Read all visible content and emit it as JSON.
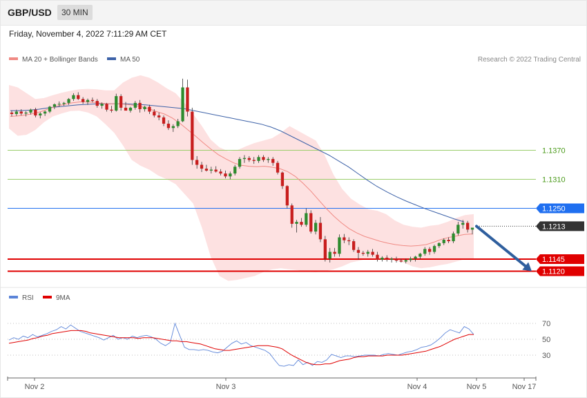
{
  "header": {
    "symbol": "GBP/USD",
    "timeframe": "30 MIN"
  },
  "date_line": "Friday, November 4, 2022 7:11:29 AM CET",
  "credit": "Research © 2022 Trading Central",
  "legend_main": [
    {
      "label": "MA 20 + Bollinger Bands",
      "color": "#f08a84"
    },
    {
      "label": "MA 50",
      "color": "#3d62a8"
    }
  ],
  "legend_rsi": [
    {
      "label": "RSI",
      "color": "#5b84d8"
    },
    {
      "label": "9MA",
      "color": "#e00000"
    }
  ],
  "colors": {
    "up": "#2e8b2e",
    "down": "#c81e1e",
    "bollinger_fill": "#fde1e1",
    "ma20": "#f08a84",
    "ma50": "#3d62a8",
    "resistance": "#9acd6a",
    "pivot": "#1f6ff0",
    "support": "#e00000",
    "current": "#333333",
    "arrow": "#2f5f9e"
  },
  "chart_data": [
    {
      "type": "candlestick",
      "title": "GBP/USD 30 MIN",
      "ylim": [
        1.1095,
        1.1545
      ],
      "x_ticks": [
        "Nov 2",
        "Nov 3",
        "Nov 4",
        "Nov 5",
        "Nov 17"
      ],
      "grid": false,
      "legend_position": "top-left",
      "candles": [
        [
          1.1448,
          1.1452,
          1.144,
          1.1445
        ],
        [
          1.1445,
          1.1454,
          1.1441,
          1.145
        ],
        [
          1.145,
          1.1455,
          1.1442,
          1.1446
        ],
        [
          1.1446,
          1.1451,
          1.144,
          1.1448
        ],
        [
          1.1448,
          1.1456,
          1.1444,
          1.1454
        ],
        [
          1.1454,
          1.1458,
          1.1438,
          1.1442
        ],
        [
          1.1442,
          1.1449,
          1.1436,
          1.1446
        ],
        [
          1.1446,
          1.1452,
          1.1441,
          1.145
        ],
        [
          1.145,
          1.1462,
          1.1447,
          1.146
        ],
        [
          1.146,
          1.1467,
          1.1455,
          1.1465
        ],
        [
          1.1465,
          1.1471,
          1.146,
          1.1466
        ],
        [
          1.1466,
          1.147,
          1.1462,
          1.1468
        ],
        [
          1.1468,
          1.1478,
          1.1464,
          1.1476
        ],
        [
          1.1476,
          1.1488,
          1.1472,
          1.1484
        ],
        [
          1.1484,
          1.149,
          1.1474,
          1.1476
        ],
        [
          1.1476,
          1.148,
          1.1466,
          1.147
        ],
        [
          1.147,
          1.1477,
          1.1464,
          1.1474
        ],
        [
          1.1474,
          1.1479,
          1.1469,
          1.1472
        ],
        [
          1.1472,
          1.1476,
          1.1458,
          1.1462
        ],
        [
          1.1462,
          1.1469,
          1.1456,
          1.1466
        ],
        [
          1.1466,
          1.1468,
          1.145,
          1.1454
        ],
        [
          1.1454,
          1.1462,
          1.1448,
          1.1452
        ],
        [
          1.1452,
          1.1487,
          1.145,
          1.1482
        ],
        [
          1.1482,
          1.1486,
          1.1452,
          1.1458
        ],
        [
          1.1458,
          1.147,
          1.1454,
          1.1452
        ],
        [
          1.1452,
          1.146,
          1.1448,
          1.1458
        ],
        [
          1.1458,
          1.1472,
          1.1454,
          1.1468
        ],
        [
          1.1468,
          1.1474,
          1.1448,
          1.1455
        ],
        [
          1.1455,
          1.1462,
          1.145,
          1.146
        ],
        [
          1.146,
          1.1464,
          1.1445,
          1.145
        ],
        [
          1.145,
          1.1455,
          1.1438,
          1.1442
        ],
        [
          1.1442,
          1.1448,
          1.1432,
          1.1438
        ],
        [
          1.1438,
          1.1442,
          1.142,
          1.1425
        ],
        [
          1.1425,
          1.1432,
          1.1412,
          1.1416
        ],
        [
          1.1416,
          1.1424,
          1.1408,
          1.142
        ],
        [
          1.142,
          1.1435,
          1.1416,
          1.143
        ],
        [
          1.143,
          1.1518,
          1.1428,
          1.15
        ],
        [
          1.15,
          1.1516,
          1.144,
          1.145
        ],
        [
          1.145,
          1.1458,
          1.134,
          1.135
        ],
        [
          1.135,
          1.1358,
          1.1332,
          1.134
        ],
        [
          1.134,
          1.1346,
          1.1325,
          1.1332
        ],
        [
          1.1332,
          1.134,
          1.1326,
          1.1328
        ],
        [
          1.1328,
          1.1336,
          1.1322,
          1.133
        ],
        [
          1.133,
          1.1337,
          1.1324,
          1.1326
        ],
        [
          1.1326,
          1.1331,
          1.1318,
          1.1322
        ],
        [
          1.1322,
          1.1328,
          1.1312,
          1.1316
        ],
        [
          1.1316,
          1.1326,
          1.131,
          1.1322
        ],
        [
          1.1322,
          1.134,
          1.1318,
          1.1336
        ],
        [
          1.1336,
          1.1356,
          1.1332,
          1.1352
        ],
        [
          1.1352,
          1.136,
          1.1344,
          1.1354
        ],
        [
          1.1354,
          1.1358,
          1.1346,
          1.135
        ],
        [
          1.135,
          1.1356,
          1.1342,
          1.1348
        ],
        [
          1.1348,
          1.136,
          1.1344,
          1.1356
        ],
        [
          1.1356,
          1.136,
          1.1346,
          1.135
        ],
        [
          1.135,
          1.1356,
          1.1344,
          1.1352
        ],
        [
          1.1352,
          1.1356,
          1.1338,
          1.1344
        ],
        [
          1.1344,
          1.1348,
          1.132,
          1.1324
        ],
        [
          1.1324,
          1.1326,
          1.129,
          1.1296
        ],
        [
          1.1296,
          1.1298,
          1.125,
          1.1256
        ],
        [
          1.1256,
          1.126,
          1.121,
          1.1218
        ],
        [
          1.1218,
          1.1226,
          1.12,
          1.1222
        ],
        [
          1.1222,
          1.123,
          1.1212,
          1.1216
        ],
        [
          1.1216,
          1.125,
          1.1212,
          1.124
        ],
        [
          1.124,
          1.1246,
          1.1198,
          1.1202
        ],
        [
          1.1202,
          1.1226,
          1.1196,
          1.122
        ],
        [
          1.122,
          1.1232,
          1.118,
          1.1186
        ],
        [
          1.1186,
          1.1193,
          1.114,
          1.1146
        ],
        [
          1.1146,
          1.1168,
          1.1138,
          1.116
        ],
        [
          1.116,
          1.1168,
          1.115,
          1.1156
        ],
        [
          1.1156,
          1.1196,
          1.115,
          1.119
        ],
        [
          1.119,
          1.1197,
          1.1178,
          1.1184
        ],
        [
          1.1184,
          1.119,
          1.1174,
          1.1182
        ],
        [
          1.1182,
          1.1186,
          1.116,
          1.1164
        ],
        [
          1.1164,
          1.117,
          1.1144,
          1.1158
        ],
        [
          1.1158,
          1.1162,
          1.1152,
          1.1156
        ],
        [
          1.1156,
          1.1164,
          1.115,
          1.116
        ],
        [
          1.116,
          1.1166,
          1.115,
          1.1154
        ],
        [
          1.1154,
          1.116,
          1.114,
          1.1144
        ],
        [
          1.1144,
          1.1151,
          1.114,
          1.1148
        ],
        [
          1.1148,
          1.1153,
          1.114,
          1.1144
        ],
        [
          1.1144,
          1.1149,
          1.1138,
          1.1146
        ],
        [
          1.1146,
          1.115,
          1.1138,
          1.1142
        ],
        [
          1.1142,
          1.1146,
          1.1138,
          1.114
        ],
        [
          1.114,
          1.1146,
          1.1136,
          1.1143
        ],
        [
          1.1143,
          1.115,
          1.1139,
          1.1146
        ],
        [
          1.1146,
          1.1152,
          1.114,
          1.115
        ],
        [
          1.115,
          1.1158,
          1.1145,
          1.1156
        ],
        [
          1.1156,
          1.117,
          1.1152,
          1.1166
        ],
        [
          1.1166,
          1.117,
          1.1154,
          1.116
        ],
        [
          1.116,
          1.1175,
          1.1156,
          1.1172
        ],
        [
          1.1172,
          1.118,
          1.1168,
          1.1178
        ],
        [
          1.1178,
          1.1188,
          1.1174,
          1.1185
        ],
        [
          1.1185,
          1.119,
          1.1178,
          1.1182
        ],
        [
          1.1182,
          1.1202,
          1.1178,
          1.1198
        ],
        [
          1.1198,
          1.1222,
          1.1194,
          1.1216
        ],
        [
          1.1216,
          1.1226,
          1.1208,
          1.122
        ],
        [
          1.122,
          1.1224,
          1.12,
          1.1206
        ],
        [
          1.1206,
          1.121,
          1.1196,
          1.121
        ]
      ],
      "ma20": [
        1.144,
        1.1441,
        1.1443,
        1.1446,
        1.145,
        1.1456,
        1.1461,
        1.1465,
        1.1468,
        1.147,
        1.147,
        1.1469,
        1.1467,
        1.1466,
        1.1466,
        1.1465,
        1.1463,
        1.146,
        1.1456,
        1.145,
        1.1445,
        1.1437,
        1.1426,
        1.1413,
        1.14,
        1.1386,
        1.1373,
        1.1361,
        1.1352,
        1.1344,
        1.1339,
        1.1337,
        1.1336,
        1.1337,
        1.1335,
        1.1332,
        1.1326,
        1.1316,
        1.1302,
        1.1286,
        1.1268,
        1.125,
        1.1234,
        1.122,
        1.1208,
        1.1199,
        1.1192,
        1.1187,
        1.1182,
        1.1178,
        1.1175,
        1.1173,
        1.1172,
        1.1173,
        1.1175,
        1.118,
        1.1186,
        1.119,
        1.1193,
        1.1196,
        1.1197
      ],
      "ma50": [
        1.1452,
        1.1452,
        1.1453,
        1.1455,
        1.1458,
        1.146,
        1.1462,
        1.1464,
        1.1465,
        1.1466,
        1.1466,
        1.1466,
        1.1466,
        1.1465,
        1.1464,
        1.1462,
        1.146,
        1.1458,
        1.1456,
        1.1452,
        1.1448,
        1.1444,
        1.144,
        1.1436,
        1.1432,
        1.1428,
        1.1424,
        1.1418,
        1.141,
        1.14,
        1.139,
        1.138,
        1.137,
        1.136,
        1.1348,
        1.1336,
        1.1322,
        1.1308,
        1.1295,
        1.1284,
        1.1274,
        1.1265,
        1.1257,
        1.1249,
        1.1242,
        1.1235,
        1.1228,
        1.1222
      ],
      "bollinger_upper": [
        1.1505,
        1.15,
        1.1488,
        1.1476,
        1.1478,
        1.1484,
        1.1489,
        1.1493,
        1.1496,
        1.1497,
        1.1496,
        1.1494,
        1.1494,
        1.151,
        1.152,
        1.1525,
        1.152,
        1.151,
        1.1498,
        1.1488,
        1.1468,
        1.1445,
        1.142,
        1.1392,
        1.1376,
        1.1368,
        1.137,
        1.1378,
        1.1385,
        1.139,
        1.1395,
        1.1406,
        1.142,
        1.141,
        1.14,
        1.139,
        1.136,
        1.132,
        1.129,
        1.127,
        1.1258,
        1.1248,
        1.1245,
        1.1238,
        1.1225,
        1.1216,
        1.1212,
        1.121,
        1.1214,
        1.1216,
        1.1222,
        1.123,
        1.1236,
        1.1238
      ],
      "bollinger_lower": [
        1.1415,
        1.14,
        1.1402,
        1.1412,
        1.1428,
        1.144,
        1.1446,
        1.1451,
        1.1452,
        1.1448,
        1.144,
        1.1424,
        1.1406,
        1.138,
        1.135,
        1.1338,
        1.133,
        1.1318,
        1.131,
        1.13,
        1.128,
        1.126,
        1.121,
        1.115,
        1.111,
        1.11,
        1.1102,
        1.1106,
        1.111,
        1.1118,
        1.1124,
        1.1126,
        1.1124,
        1.1122,
        1.1119,
        1.1118,
        1.112,
        1.1124,
        1.113,
        1.1138,
        1.1142,
        1.1146,
        1.1148,
        1.1146,
        1.1142,
        1.1138,
        1.113,
        1.1126,
        1.1128,
        1.1132,
        1.1135,
        1.114,
        1.1145,
        1.1145
      ],
      "levels": [
        {
          "label": "1.1370",
          "value": 1.137,
          "kind": "resistance"
        },
        {
          "label": "1.1310",
          "value": 1.131,
          "kind": "resistance"
        },
        {
          "label": "1.1250",
          "value": 1.125,
          "kind": "pivot"
        },
        {
          "label": "1.1213",
          "value": 1.1213,
          "kind": "current"
        },
        {
          "label": "1.1145",
          "value": 1.1145,
          "kind": "support"
        },
        {
          "label": "1.1120",
          "value": 1.112,
          "kind": "support"
        }
      ],
      "forecast_arrow": {
        "from": 1.1213,
        "to": 1.112,
        "direction": "down"
      }
    },
    {
      "type": "line",
      "title": "RSI",
      "ylim": [
        10,
        90
      ],
      "y_ticks": [
        70,
        50,
        30
      ],
      "rsi": [
        49,
        52,
        50,
        54,
        52,
        56,
        53,
        55,
        57,
        60,
        62,
        66,
        63,
        68,
        64,
        60,
        58,
        56,
        54,
        52,
        49,
        52,
        55,
        50,
        52,
        50,
        54,
        52,
        54,
        55,
        53,
        50,
        45,
        42,
        46,
        70,
        55,
        40,
        37,
        37,
        36,
        37,
        36,
        34,
        33,
        35,
        40,
        45,
        48,
        44,
        46,
        42,
        40,
        38,
        36,
        32,
        24,
        17,
        16,
        18,
        17,
        24,
        18,
        21,
        17,
        22,
        21,
        24,
        31,
        29,
        27,
        29,
        29,
        28,
        29,
        30,
        30,
        30,
        29,
        31,
        32,
        31,
        30,
        32,
        34,
        35,
        37,
        40,
        41,
        43,
        47,
        52,
        58,
        62,
        60,
        58,
        66,
        63,
        56
      ],
      "ma9": [
        45,
        46,
        47,
        48,
        49,
        51,
        52,
        54,
        55,
        57,
        58,
        59,
        60,
        61,
        61,
        61,
        60,
        58,
        57,
        56,
        55,
        54,
        53,
        52,
        52,
        52,
        52,
        51,
        52,
        52,
        52,
        51,
        50,
        49,
        48,
        48,
        47,
        47,
        46,
        45,
        44,
        42,
        40,
        38,
        37,
        36,
        36,
        37,
        38,
        39,
        40,
        41,
        42,
        42,
        42,
        41,
        40,
        38,
        34,
        30,
        27,
        24,
        21,
        19,
        18,
        18,
        19,
        19,
        21,
        23,
        24,
        25,
        27,
        28,
        28,
        29,
        29,
        29,
        29,
        30,
        30,
        30,
        30,
        31,
        32,
        33,
        34,
        35,
        37,
        39,
        41,
        44,
        47,
        50,
        52,
        54,
        56,
        56
      ]
    }
  ]
}
